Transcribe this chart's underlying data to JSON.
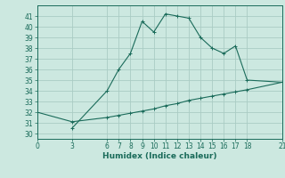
{
  "xlabel": "Humidex (Indice chaleur)",
  "bg_color": "#cce8e0",
  "line_color": "#1a6b5a",
  "grid_color": "#aaccc4",
  "curve1_x": [
    3,
    6,
    7,
    8,
    9,
    10,
    11,
    12,
    13,
    14,
    15,
    16,
    17,
    18,
    21
  ],
  "curve1_y": [
    30.5,
    34.0,
    36.0,
    37.5,
    40.5,
    39.5,
    41.2,
    41.0,
    40.8,
    39.0,
    38.0,
    37.5,
    38.2,
    35.0,
    34.8
  ],
  "curve2_x": [
    0,
    3,
    6,
    7,
    8,
    9,
    10,
    11,
    12,
    13,
    14,
    15,
    16,
    17,
    18,
    21
  ],
  "curve2_y": [
    32.0,
    31.1,
    31.5,
    31.7,
    31.9,
    32.1,
    32.3,
    32.6,
    32.8,
    33.1,
    33.3,
    33.5,
    33.7,
    33.9,
    34.1,
    34.8
  ],
  "xticks": [
    0,
    3,
    6,
    7,
    8,
    9,
    10,
    11,
    12,
    13,
    14,
    15,
    16,
    17,
    18,
    21
  ],
  "yticks": [
    30,
    31,
    32,
    33,
    34,
    35,
    36,
    37,
    38,
    39,
    40,
    41
  ],
  "xlim": [
    0,
    21
  ],
  "ylim": [
    29.5,
    42
  ]
}
